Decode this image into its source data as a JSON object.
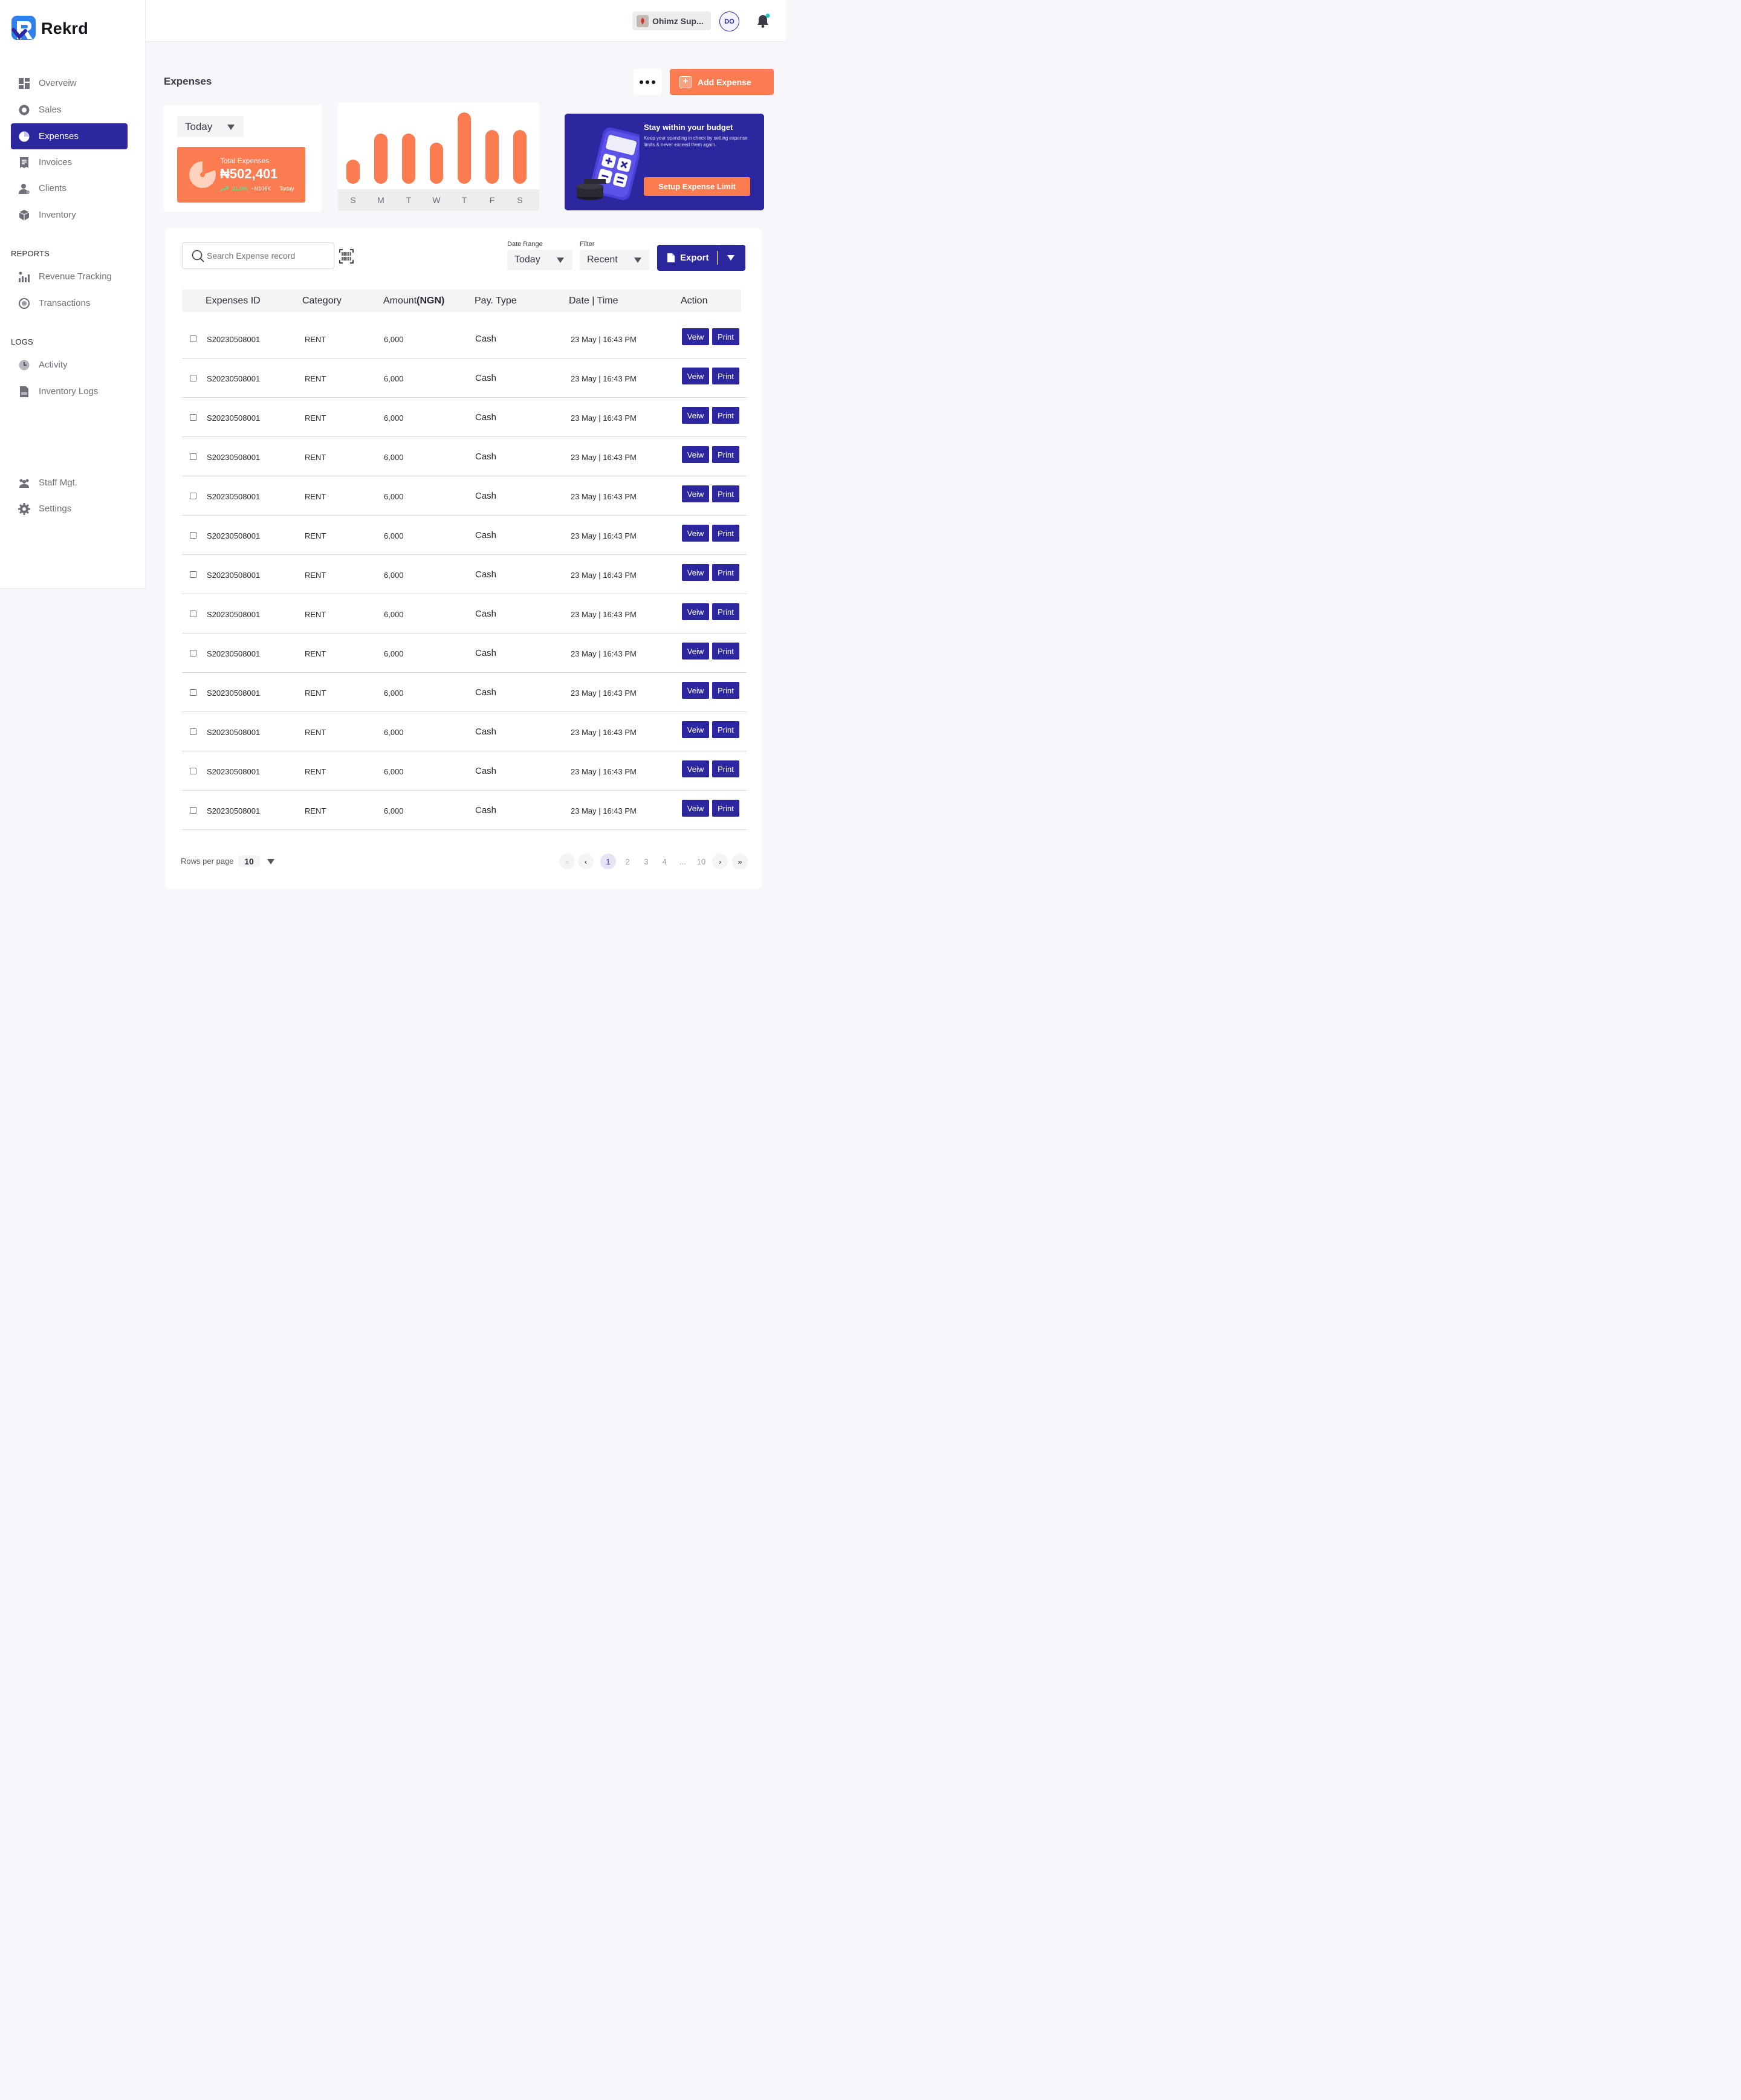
{
  "brand": {
    "name": "Rekrd",
    "color": "#2d279f",
    "accent": "#fb7c51"
  },
  "sidebar": {
    "items": [
      {
        "label": "Overveiw",
        "icon": "dashboard-icon"
      },
      {
        "label": "Sales",
        "icon": "pie-chart-icon"
      },
      {
        "label": "Expenses",
        "icon": "expenses-icon",
        "active": true
      },
      {
        "label": "Invoices",
        "icon": "invoice-icon"
      },
      {
        "label": "Clients",
        "icon": "clients-icon"
      },
      {
        "label": "Inventory",
        "icon": "inventory-icon"
      }
    ],
    "reports_title": "REPORTS",
    "reports": [
      {
        "label": "Revenue Tracking",
        "icon": "revenue-chart-icon"
      },
      {
        "label": "Transactions",
        "icon": "transactions-icon"
      }
    ],
    "logs_title": "LOGS",
    "logs": [
      {
        "label": "Activity",
        "icon": "activity-icon"
      },
      {
        "label": "Inventory Logs",
        "icon": "inventory-logs-icon"
      }
    ],
    "bottom": [
      {
        "label": "Staff Mgt.",
        "icon": "staff-icon"
      },
      {
        "label": "Settings",
        "icon": "settings-icon"
      }
    ]
  },
  "topbar": {
    "store_name": "Ohimz Sup...",
    "avatar_initials": "DO"
  },
  "page": {
    "title": "Expenses",
    "add_button": "Add Expense"
  },
  "stats": {
    "period": "Today",
    "total_label": "Total Expenses",
    "total_value": "₦502,401",
    "change_pct": "21.9%",
    "change_amount": "~N106K",
    "change_period": "Today",
    "weekly_levels": [
      0.34,
      0.7,
      0.7,
      0.58,
      1.0,
      0.75,
      0.75
    ],
    "days": [
      "S",
      "M",
      "T",
      "W",
      "T",
      "F",
      "S"
    ]
  },
  "budget": {
    "title": "Stay within your budget",
    "subtitle": "Keep your spending in check by setting expense limits & never exceed them again.",
    "button": "Setup Expense Limit"
  },
  "table": {
    "search_placeholder": "Search Expense record",
    "date_range_label": "Date Range",
    "date_range_value": "Today",
    "filter_label": "Filter",
    "filter_value": "Recent",
    "export_label": "Export",
    "headers": {
      "id": "Expenses ID",
      "category": "Category",
      "amount": "Amount",
      "amount_unit": "(NGN)",
      "pay_type": "Pay. Type",
      "date": "Date | Time",
      "action": "Action"
    },
    "view_label": "Veiw",
    "print_label": "Print",
    "rows": [
      {
        "id": "S20230508001",
        "category": "RENT",
        "amount": "6,000",
        "pay_type": "Cash",
        "date": "23 May | 16:43 PM"
      },
      {
        "id": "S20230508001",
        "category": "RENT",
        "amount": "6,000",
        "pay_type": "Cash",
        "date": "23 May | 16:43 PM"
      },
      {
        "id": "S20230508001",
        "category": "RENT",
        "amount": "6,000",
        "pay_type": "Cash",
        "date": "23 May | 16:43 PM"
      },
      {
        "id": "S20230508001",
        "category": "RENT",
        "amount": "6,000",
        "pay_type": "Cash",
        "date": "23 May | 16:43 PM"
      },
      {
        "id": "S20230508001",
        "category": "RENT",
        "amount": "6,000",
        "pay_type": "Cash",
        "date": "23 May | 16:43 PM"
      },
      {
        "id": "S20230508001",
        "category": "RENT",
        "amount": "6,000",
        "pay_type": "Cash",
        "date": "23 May | 16:43 PM"
      },
      {
        "id": "S20230508001",
        "category": "RENT",
        "amount": "6,000",
        "pay_type": "Cash",
        "date": "23 May | 16:43 PM"
      },
      {
        "id": "S20230508001",
        "category": "RENT",
        "amount": "6,000",
        "pay_type": "Cash",
        "date": "23 May | 16:43 PM"
      },
      {
        "id": "S20230508001",
        "category": "RENT",
        "amount": "6,000",
        "pay_type": "Cash",
        "date": "23 May | 16:43 PM"
      },
      {
        "id": "S20230508001",
        "category": "RENT",
        "amount": "6,000",
        "pay_type": "Cash",
        "date": "23 May | 16:43 PM"
      },
      {
        "id": "S20230508001",
        "category": "RENT",
        "amount": "6,000",
        "pay_type": "Cash",
        "date": "23 May | 16:43 PM"
      },
      {
        "id": "S20230508001",
        "category": "RENT",
        "amount": "6,000",
        "pay_type": "Cash",
        "date": "23 May | 16:43 PM"
      },
      {
        "id": "S20230508001",
        "category": "RENT",
        "amount": "6,000",
        "pay_type": "Cash",
        "date": "23 May | 16:43 PM"
      }
    ],
    "rows_per_page_label": "Rows per page",
    "rows_per_page_value": "10",
    "pagination": [
      "1",
      "2",
      "3",
      "4",
      "...",
      "10"
    ]
  }
}
